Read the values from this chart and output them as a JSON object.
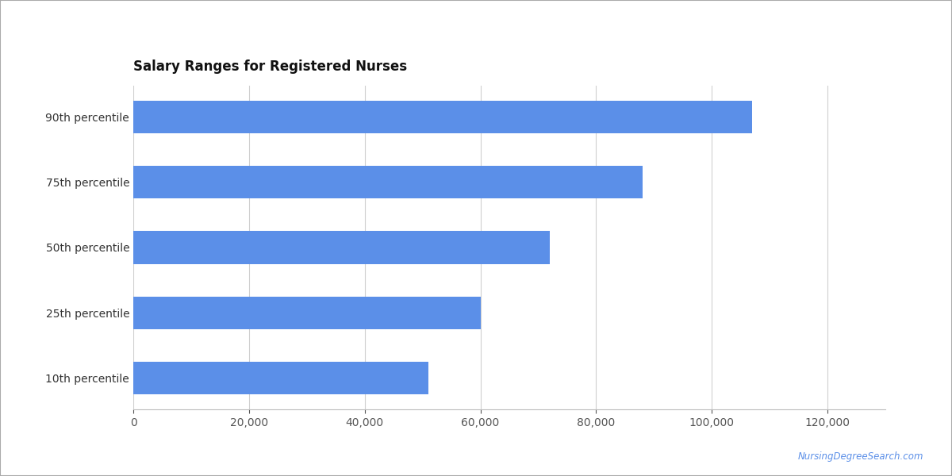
{
  "title": "Salary Ranges for Registered Nurses",
  "categories": [
    "10th percentile",
    "25th percentile",
    "50th percentile",
    "75th percentile",
    "90th percentile"
  ],
  "values": [
    51000,
    60000,
    72000,
    88000,
    107000
  ],
  "bar_color": "#5B8FE8",
  "xlim": [
    0,
    130000
  ],
  "xticks": [
    0,
    20000,
    40000,
    60000,
    80000,
    100000,
    120000
  ],
  "background_color": "#ffffff",
  "title_fontsize": 12,
  "tick_fontsize": 10,
  "watermark": "NursingDegreeSearch.com",
  "watermark_color": "#5B8FE8",
  "grid_color": "#d0d0d0",
  "border_color": "#aaaaaa"
}
